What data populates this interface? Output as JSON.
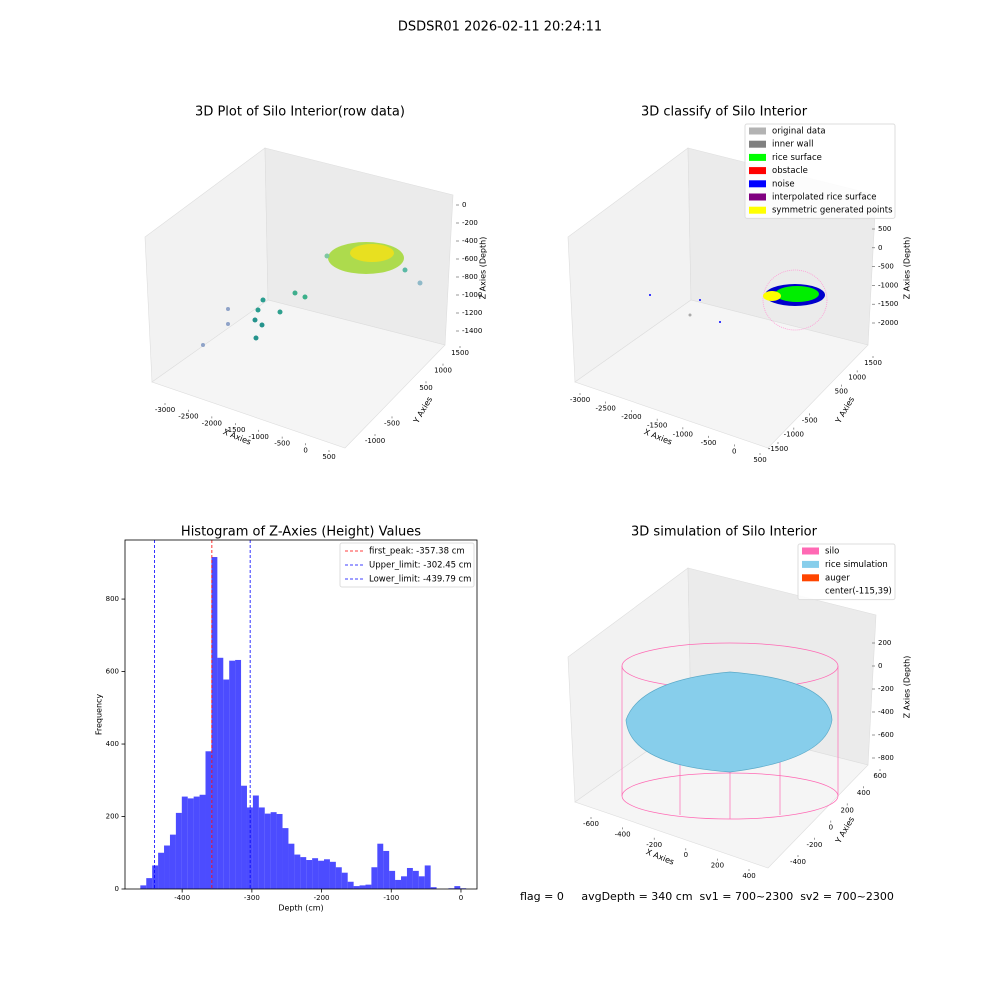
{
  "suptitle": "DSDSR01 2026-02-11 20:24:11",
  "footer": "flag = 0     avgDepth = 340 cm  sv1 = 700~2300  sv2 = 700~2300",
  "chart_data": [
    {
      "type": "scatter3d",
      "title": "3D Plot of Silo Interior(row data)",
      "xlabel": "X Axies",
      "ylabel": "Y Axies",
      "zlabel": "Z Axies (Depth)",
      "xticks": [
        -3000,
        -2500,
        -2000,
        -1500,
        -1000,
        -500,
        0,
        500
      ],
      "yticks": [
        1500,
        1000,
        500,
        -500,
        -1000
      ],
      "zticks": [
        0,
        -200,
        -400,
        -600,
        -800,
        -1000,
        -1200,
        -1400
      ]
    },
    {
      "type": "scatter3d",
      "title": "3D classify of Silo Interior",
      "xlabel": "X Axies",
      "ylabel": "Y Axies",
      "zlabel": "Z Axies (Depth)",
      "xticks": [
        -3000,
        -2500,
        -2000,
        -1500,
        -1000,
        -500,
        0,
        500
      ],
      "yticks": [
        1500,
        1000,
        500,
        -500,
        -1000,
        -1500
      ],
      "zticks": [
        500,
        0,
        -500,
        -1000,
        -1500,
        -2000
      ],
      "legend": [
        {
          "name": "original data",
          "color": "#b3b3b3"
        },
        {
          "name": "inner wall",
          "color": "#808080"
        },
        {
          "name": "rice surface",
          "color": "#00ff00"
        },
        {
          "name": "obstacle",
          "color": "#ff0000"
        },
        {
          "name": "noise",
          "color": "#0000ff"
        },
        {
          "name": "interpolated rice surface",
          "color": "#800080"
        },
        {
          "name": "symmetric generated points",
          "color": "#ffff00"
        }
      ]
    },
    {
      "type": "histogram",
      "title": "Histogram of Z-Axies (Height) Values",
      "xlabel": "Depth (cm)",
      "ylabel": "Frequency",
      "color": "#0000ff",
      "alpha": 0.7,
      "bins": [
        -460,
        -451.5,
        -443,
        -434.5,
        -426,
        -417.5,
        -409,
        -400.5,
        -392,
        -383.5,
        -375,
        -366.5,
        -358,
        -349.5,
        -341,
        -332.5,
        -324,
        -315.5,
        -307,
        -298.5,
        -290,
        -281.5,
        -273,
        -264.5,
        -256,
        -247.5,
        -239,
        -230.5,
        -222,
        -213.5,
        -205,
        -196.5,
        -188,
        -179.5,
        -171,
        -162.5,
        -154,
        -145.5,
        -137,
        -128.5,
        -120,
        -111.5,
        -103,
        -94.5,
        -86,
        -77.5,
        -69,
        -60.5,
        -52,
        -43.5,
        -35,
        -26.5,
        -18,
        -9.5,
        -1,
        7.5
      ],
      "values": [
        10,
        30,
        65,
        100,
        120,
        150,
        210,
        255,
        250,
        255,
        260,
        380,
        916,
        638,
        578,
        630,
        632,
        285,
        225,
        258,
        225,
        208,
        212,
        207,
        168,
        125,
        95,
        88,
        80,
        85,
        78,
        82,
        75,
        60,
        45,
        20,
        8,
        10,
        12,
        60,
        125,
        105,
        50,
        25,
        35,
        58,
        50,
        35,
        65,
        5,
        0,
        0,
        2,
        8,
        2
      ],
      "xlim": [
        -482,
        23
      ],
      "ylim": [
        0,
        963
      ],
      "xticks": [
        -400,
        -300,
        -200,
        -100,
        0
      ],
      "yticks": [
        0,
        200,
        400,
        600,
        800
      ],
      "lines": [
        {
          "label": "first_peak: -357.38 cm",
          "value": -357.38,
          "color": "#ff0000"
        },
        {
          "label": "Upper_limit: -302.45 cm",
          "value": -302.45,
          "color": "#0000ff"
        },
        {
          "label": "Lower_limit: -439.79 cm",
          "value": -439.79,
          "color": "#0000ff"
        }
      ]
    },
    {
      "type": "scatter3d",
      "title": "3D simulation of Silo Interior",
      "xlabel": "X Axies",
      "ylabel": "Y Axies",
      "zlabel": "Z Axies (Depth)",
      "xticks": [
        -600,
        -400,
        -200,
        0,
        200,
        400
      ],
      "yticks": [
        -400,
        -200,
        0,
        200,
        400,
        600
      ],
      "zticks": [
        200,
        0,
        -200,
        -400,
        -600,
        -800
      ],
      "legend": [
        {
          "name": "silo",
          "color": "#ff69b4"
        },
        {
          "name": "rice simulation",
          "color": "#87ceeb"
        },
        {
          "name": "auger",
          "color": "#ff4500"
        },
        {
          "name": "center(-115,39)"
        }
      ]
    }
  ]
}
